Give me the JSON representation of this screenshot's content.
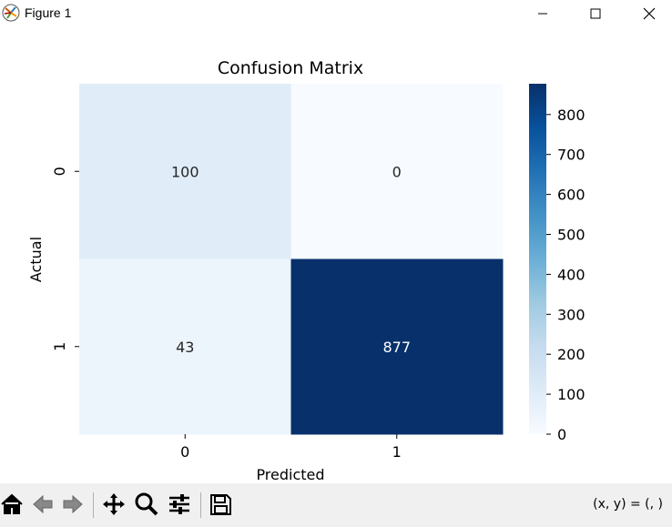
{
  "window": {
    "title": "Figure 1",
    "controls": [
      "minimize-icon",
      "maximize-icon",
      "close-icon"
    ]
  },
  "chart_data": {
    "type": "heatmap",
    "title": "Confusion Matrix",
    "xlabel": "Predicted",
    "ylabel": "Actual",
    "x_categories": [
      "0",
      "1"
    ],
    "y_categories": [
      "0",
      "1"
    ],
    "values": [
      [
        100,
        0
      ],
      [
        43,
        877
      ]
    ],
    "colorbar": {
      "min": 0,
      "max": 877,
      "ticks": [
        0,
        100,
        200,
        300,
        400,
        500,
        600,
        700,
        800
      ],
      "colormap": "Blues",
      "low_color": "#f7fbff",
      "high_color": "#08306b"
    },
    "annotation_colors": {
      "on_light": "#262626",
      "on_dark": "#ffffff"
    }
  },
  "toolbar": {
    "tools": [
      "home-icon",
      "back-icon",
      "forward-icon",
      "pan-icon",
      "zoom-icon",
      "configure-subplots-icon",
      "save-icon"
    ],
    "coords_text": "(x, y) = (, )"
  }
}
